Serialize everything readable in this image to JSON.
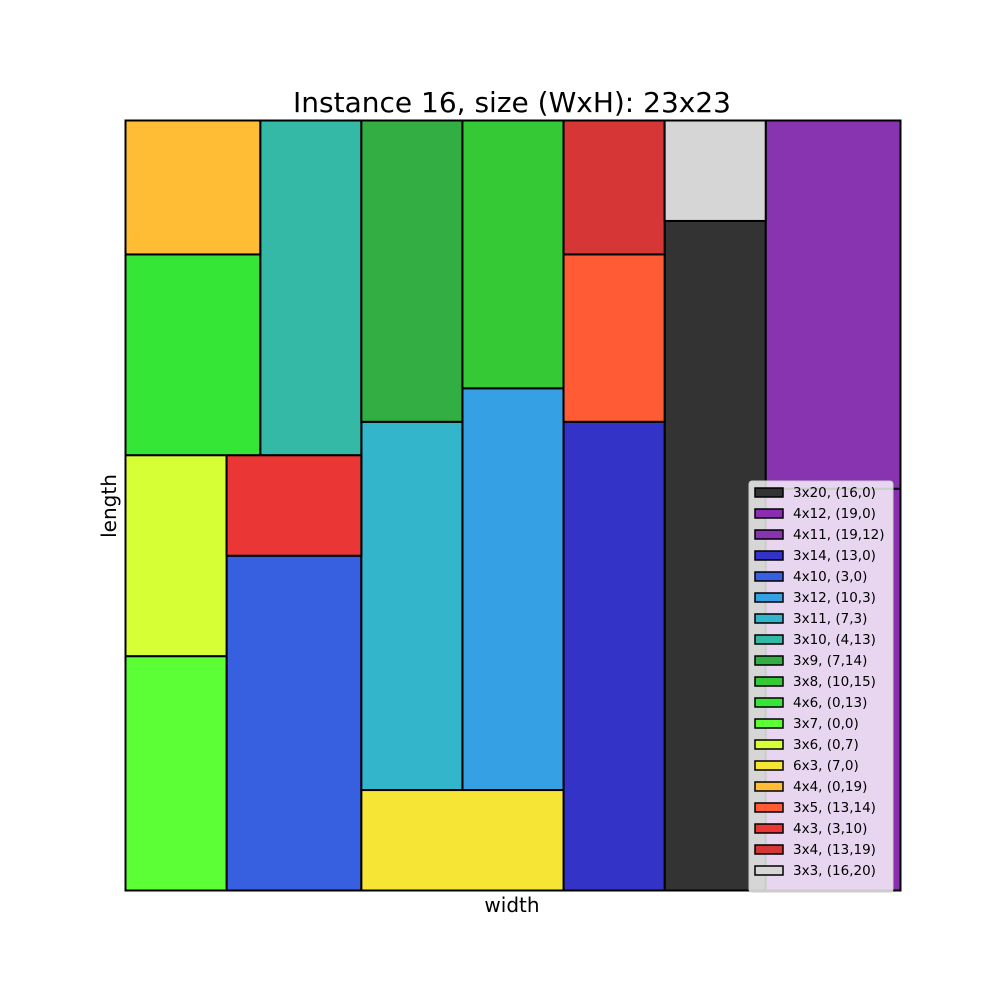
{
  "chart_data": {
    "type": "rectangle-packing",
    "title": "Instance 16, size (WxH): 23x23",
    "xlabel": "width",
    "ylabel": "length",
    "xlim": [
      0,
      23
    ],
    "ylim": [
      0,
      23
    ],
    "legend_position": "lower-right",
    "rects": [
      {
        "label": "3x20, (16,0)",
        "x": 16,
        "y": 0,
        "w": 3,
        "h": 20,
        "color": "#333333"
      },
      {
        "label": "4x12, (19,0)",
        "x": 19,
        "y": 0,
        "w": 4,
        "h": 12,
        "color": "#8a2db0"
      },
      {
        "label": "4x11, (19,12)",
        "x": 19,
        "y": 12,
        "w": 4,
        "h": 11,
        "color": "#8833b0"
      },
      {
        "label": "3x14, (13,0)",
        "x": 13,
        "y": 0,
        "w": 3,
        "h": 14,
        "color": "#3333c8"
      },
      {
        "label": "4x10, (3,0)",
        "x": 3,
        "y": 0,
        "w": 4,
        "h": 10,
        "color": "#3660e0"
      },
      {
        "label": "3x12, (10,3)",
        "x": 10,
        "y": 3,
        "w": 3,
        "h": 12,
        "color": "#36a0e4"
      },
      {
        "label": "3x11, (7,3)",
        "x": 7,
        "y": 3,
        "w": 3,
        "h": 11,
        "color": "#33b5cb"
      },
      {
        "label": "3x10, (4,13)",
        "x": 4,
        "y": 13,
        "w": 3,
        "h": 10,
        "color": "#33b9a5"
      },
      {
        "label": "3x9, (7,14)",
        "x": 7,
        "y": 14,
        "w": 3,
        "h": 9,
        "color": "#33ae43"
      },
      {
        "label": "3x8, (10,15)",
        "x": 10,
        "y": 15,
        "w": 3,
        "h": 8,
        "color": "#36c936"
      },
      {
        "label": "4x6, (0,13)",
        "x": 0,
        "y": 13,
        "w": 4,
        "h": 6,
        "color": "#36e636"
      },
      {
        "label": "3x7, (0,0)",
        "x": 0,
        "y": 0,
        "w": 3,
        "h": 7,
        "color": "#5cff36"
      },
      {
        "label": "3x6, (0,7)",
        "x": 0,
        "y": 7,
        "w": 3,
        "h": 6,
        "color": "#d6ff36"
      },
      {
        "label": "6x3, (7,0)",
        "x": 7,
        "y": 0,
        "w": 6,
        "h": 3,
        "color": "#f7e536"
      },
      {
        "label": "4x4, (0,19)",
        "x": 0,
        "y": 19,
        "w": 4,
        "h": 4,
        "color": "#ffbd36"
      },
      {
        "label": "3x5, (13,14)",
        "x": 13,
        "y": 14,
        "w": 3,
        "h": 5,
        "color": "#ff5c36"
      },
      {
        "label": "4x3, (3,10)",
        "x": 3,
        "y": 10,
        "w": 4,
        "h": 3,
        "color": "#eb3636"
      },
      {
        "label": "3x4, (13,19)",
        "x": 13,
        "y": 19,
        "w": 3,
        "h": 4,
        "color": "#d63636"
      },
      {
        "label": "3x3, (16,20)",
        "x": 16,
        "y": 20,
        "w": 3,
        "h": 3,
        "color": "#d6d6d6"
      }
    ]
  }
}
